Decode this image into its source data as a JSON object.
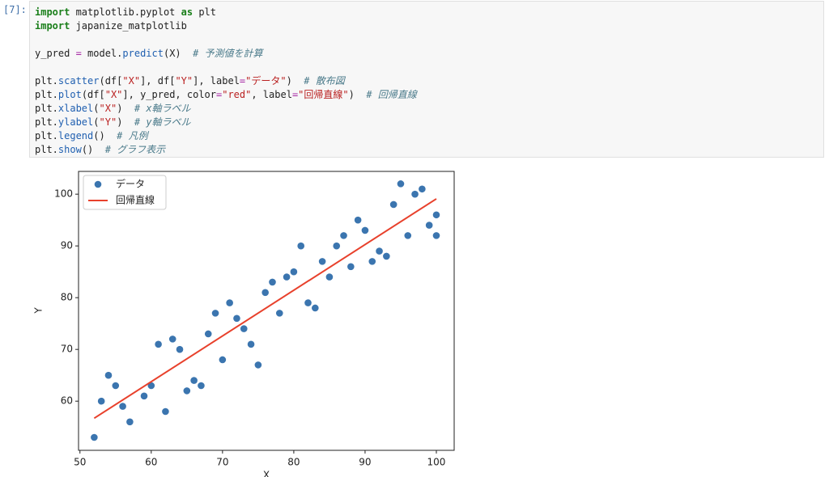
{
  "cell": {
    "prompt": "[7]:",
    "code": [
      [
        "import matplotlib.pyplot as plt",
        "import japanize_matplotlib"
      ],
      [
        "y_pred = model.predict(X)  # 予測値を計算"
      ],
      [
        "plt.scatter(df[\"X\"], df[\"Y\"], label=\"データ\")  # 散布図",
        "plt.plot(df[\"X\"], y_pred, color=\"red\", label=\"回帰直線\")  # 回帰直線",
        "plt.xlabel(\"X\")  # x軸ラベル",
        "plt.ylabel(\"Y\")  # y軸ラベル",
        "plt.legend()  # 凡例",
        "plt.show()  # グラフ表示"
      ]
    ]
  },
  "chart_data": {
    "type": "scatter",
    "xlabel": "X",
    "ylabel": "Y",
    "xlim": [
      49.8,
      102.5
    ],
    "ylim": [
      50.5,
      104.4
    ],
    "xticks": [
      50,
      60,
      70,
      80,
      90,
      100
    ],
    "yticks": [
      60,
      70,
      80,
      90,
      100
    ],
    "legend": "upper left",
    "series": [
      {
        "name": "データ",
        "color": "#3b75af",
        "kind": "scatter",
        "x": [
          52,
          53,
          54,
          55,
          56,
          57,
          59,
          60,
          61,
          62,
          63,
          64,
          65,
          66,
          67,
          68,
          69,
          70,
          71,
          72,
          73,
          74,
          75,
          76,
          77,
          78,
          79,
          80,
          81,
          82,
          83,
          84,
          85,
          86,
          87,
          88,
          89,
          90,
          91,
          92,
          93,
          94,
          95,
          96,
          97,
          98,
          99,
          100,
          100
        ],
        "values": [
          53,
          60,
          65,
          63,
          59,
          56,
          61,
          63,
          71,
          58,
          72,
          70,
          62,
          64,
          63,
          73,
          77,
          68,
          79,
          76,
          74,
          71,
          67,
          81,
          83,
          77,
          84,
          85,
          90,
          79,
          78,
          87,
          84,
          90,
          92,
          86,
          95,
          93,
          87,
          89,
          88,
          98,
          102,
          92,
          100,
          101,
          94,
          96,
          92
        ]
      },
      {
        "name": "回帰直線",
        "color": "#e8412c",
        "kind": "line",
        "x": [
          52,
          100
        ],
        "values": [
          56.7,
          99.1
        ]
      }
    ]
  }
}
